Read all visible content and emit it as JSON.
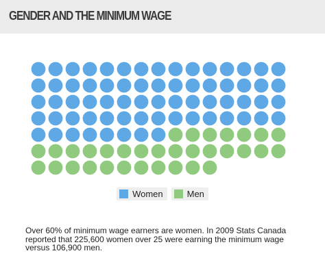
{
  "header": {
    "title": "GENDER AND THE MINIMUM WAGE"
  },
  "chart_data": {
    "type": "waffle",
    "title": "GENDER AND THE MINIMUM WAGE",
    "columns": 15,
    "categories": [
      "Women",
      "Men"
    ],
    "values": [
      68,
      33
    ],
    "colors": {
      "Women": "#5ea8e6",
      "Men": "#8fca7e"
    },
    "legend_position": "bottom-center"
  },
  "legend": {
    "items": [
      {
        "label": "Women",
        "color": "#5ea8e6"
      },
      {
        "label": "Men",
        "color": "#8fca7e"
      }
    ]
  },
  "footnote": {
    "text": "Over 60% of minimum wage earners are women.  In 2009 Stats Canada reported that 225,600 women over 25 were earning the minimum wage versus 106,900 men."
  }
}
